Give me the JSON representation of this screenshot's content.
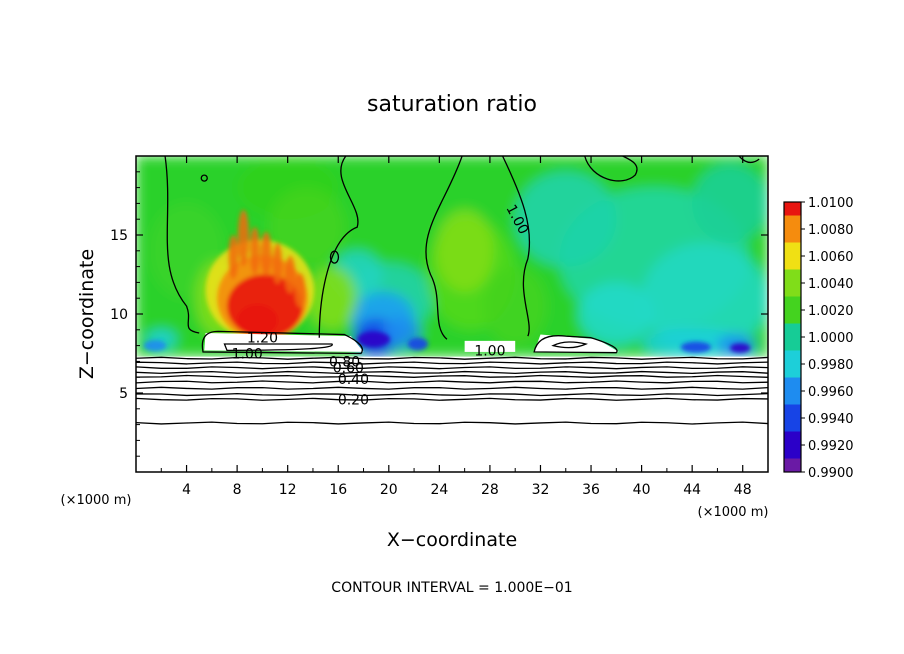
{
  "chart_data": {
    "type": "heatmap",
    "title": "saturation ratio",
    "xlabel": "X−coordinate",
    "ylabel": "Z−coordinate",
    "x_unit": "(×1000 m)",
    "xlim": [
      0,
      50
    ],
    "ylim": [
      0,
      20
    ],
    "x_ticks": [
      4,
      8,
      12,
      16,
      20,
      24,
      28,
      32,
      36,
      40,
      44,
      48
    ],
    "x_tick_labels": [
      "4",
      "8",
      "12",
      "16",
      "20",
      "24",
      "28",
      "32",
      "36",
      "40",
      "44",
      "48"
    ],
    "y_ticks": [
      5,
      10,
      15
    ],
    "y_tick_labels": [
      "5",
      "10",
      "15"
    ],
    "colorbar": {
      "levels": [
        0.99,
        0.992,
        0.994,
        0.996,
        0.998,
        1.0,
        1.002,
        1.004,
        1.006,
        1.008,
        1.01
      ],
      "labels": [
        "0.9900",
        "0.9920",
        "0.9940",
        "0.9960",
        "0.9980",
        "1.0000",
        "1.0020",
        "1.0040",
        "1.0060",
        "1.0080",
        "1.0100"
      ],
      "colors": [
        "#6a1aa5",
        "#2b00c8",
        "#1744e6",
        "#1e8cf0",
        "#1dcfd9",
        "#16cc96",
        "#44d31f",
        "#80dd19",
        "#f0e014",
        "#f58c0e",
        "#e81510",
        "#f08a8a"
      ]
    },
    "contour_labels": [
      {
        "text": "1.20",
        "x": 10.0,
        "y": 8.5
      },
      {
        "text": "1.00",
        "x": 8.8,
        "y": 7.5
      },
      {
        "text": "0.80",
        "x": 16.5,
        "y": 7.0
      },
      {
        "text": "0.60",
        "x": 16.8,
        "y": 6.6
      },
      {
        "text": "0.40",
        "x": 17.2,
        "y": 5.9
      },
      {
        "text": "0.20",
        "x": 17.2,
        "y": 4.6
      },
      {
        "text": "1.00",
        "x": 30.2,
        "y": 16.0
      },
      {
        "text": "1.00",
        "x": 28.0,
        "y": 7.7
      }
    ],
    "contour_interval_text": "CONTOUR INTERVAL = 1.000E−01",
    "grid": false
  }
}
